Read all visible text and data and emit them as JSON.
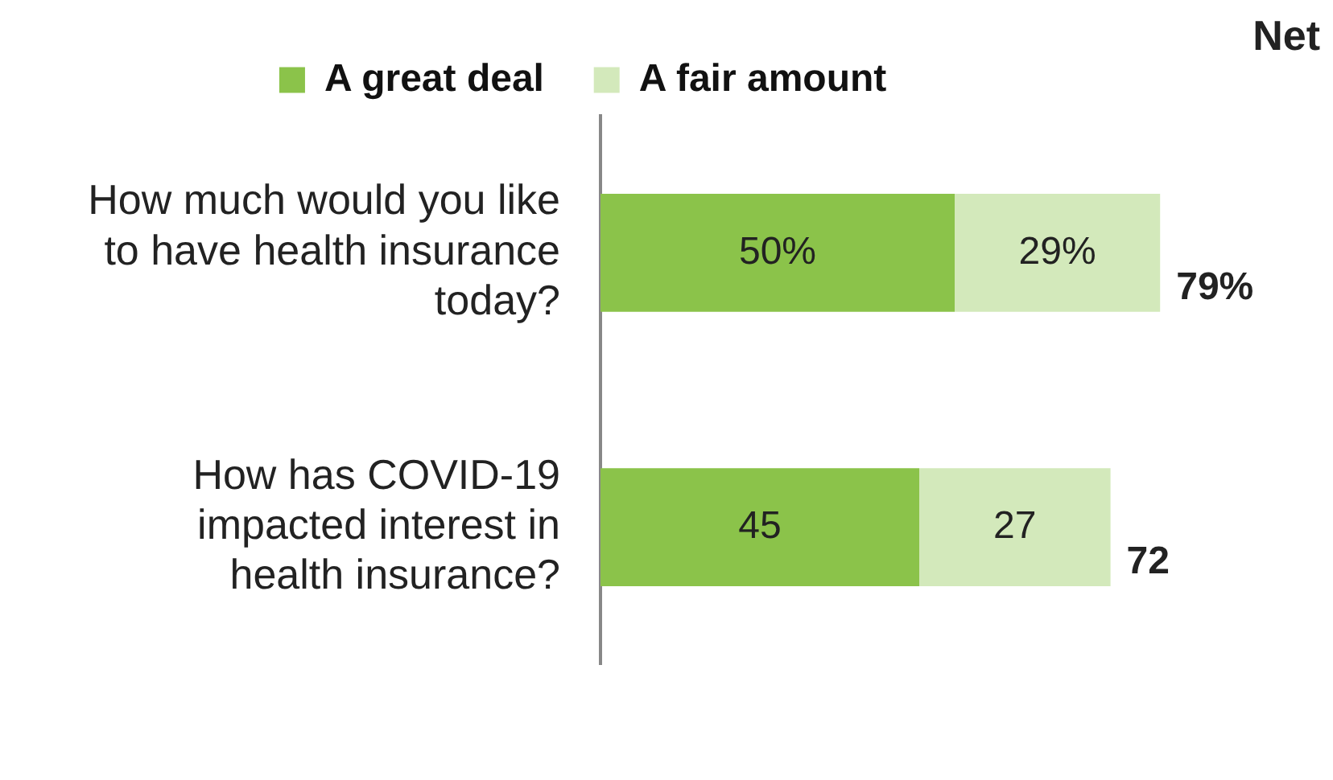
{
  "chart_data": {
    "type": "bar",
    "orientation": "horizontal",
    "stacked": true,
    "categories": [
      "How much would you like to have health insurance today?",
      "How has COVID-19 impacted interest in health insurance?"
    ],
    "series": [
      {
        "name": "A great deal",
        "color": "#8bc34a",
        "values": [
          50,
          45
        ],
        "value_labels": [
          "50%",
          "45"
        ]
      },
      {
        "name": "A fair amount",
        "color": "#d3e9bb",
        "values": [
          29,
          27
        ],
        "value_labels": [
          "29%",
          "27"
        ]
      }
    ],
    "tick_labels": "y",
    "legend": "top",
    "totals": [
      "79%",
      "72"
    ],
    "annotations": [
      "Net"
    ]
  }
}
